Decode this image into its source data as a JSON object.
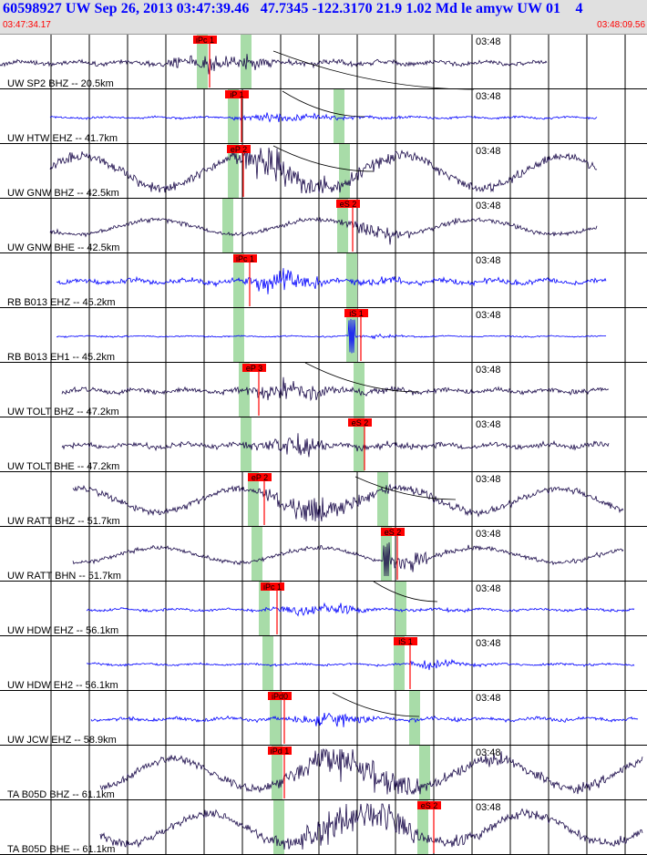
{
  "header": {
    "title": "60598927 UW Sep 26, 2013 03:47:39.46   47.7345 -122.3170 21.9 1.02 Md le amyw UW 01    4",
    "start_time": "03:47:34.17",
    "end_time": "03:48:09.56"
  },
  "colors": {
    "header_bg": "#e0e0e0",
    "title": "#0000ff",
    "time_labels": "#ff0000",
    "pick": "#ff0000",
    "green_band": "#a8dca8",
    "trace_dark": "#1a0a4a",
    "trace_blue": "#0000ff",
    "travel_curve": "#000000",
    "grid": "#000000"
  },
  "chart_data": {
    "type": "line",
    "chart_kind": "seismogram record section",
    "time_range": [
      "03:47:34.17",
      "03:48:09.56"
    ],
    "minute_marker": "03:48",
    "grid": true,
    "panels": [
      {
        "label": "UW SP2 BHZ -- 20.5km",
        "pick": "iPc 1",
        "color": "dark",
        "travel_curve": true
      },
      {
        "label": "UW HTW EHZ -- 41.7km",
        "pick": "iP 1",
        "color": "blue",
        "travel_curve": true
      },
      {
        "label": "UW GNW BHZ -- 42.5km",
        "pick": "eP 2",
        "color": "dark",
        "travel_curve": true
      },
      {
        "label": "UW GNW BHE -- 42.5km",
        "pick": "eS 2",
        "color": "dark",
        "travel_curve": false
      },
      {
        "label": "RB B013 EHZ -- 45.2km",
        "pick": "iPc 1",
        "color": "blue",
        "travel_curve": false
      },
      {
        "label": "RB B013 EH1 -- 45.2km",
        "pick": "iS 1",
        "color": "blue",
        "travel_curve": false
      },
      {
        "label": "UW TOLT BHZ -- 47.2km",
        "pick": "eP 3",
        "color": "dark",
        "travel_curve": true
      },
      {
        "label": "UW TOLT BHE -- 47.2km",
        "pick": "eS 2",
        "color": "dark",
        "travel_curve": false
      },
      {
        "label": "UW RATT BHZ -- 51.7km",
        "pick": "eP 2",
        "color": "dark",
        "travel_curve": true
      },
      {
        "label": "UW RATT BHN -- 51.7km",
        "pick": "eS 2",
        "color": "dark",
        "travel_curve": false
      },
      {
        "label": "UW HDW EHZ -- 56.1km",
        "pick": "iPc 1",
        "color": "blue",
        "travel_curve": true
      },
      {
        "label": "UW HDW EH2 -- 56.1km",
        "pick": "iS 1",
        "color": "blue",
        "travel_curve": false
      },
      {
        "label": "UW JCW EHZ -- 58.9km",
        "pick": "iPd0",
        "color": "blue",
        "travel_curve": true
      },
      {
        "label": "TA B05D BHZ -- 61.1km",
        "pick": "iPd 1",
        "color": "dark",
        "travel_curve": false
      },
      {
        "label": "TA B05D BHE -- 61.1km",
        "pick": "eS 2",
        "color": "dark",
        "travel_curve": false
      }
    ]
  }
}
